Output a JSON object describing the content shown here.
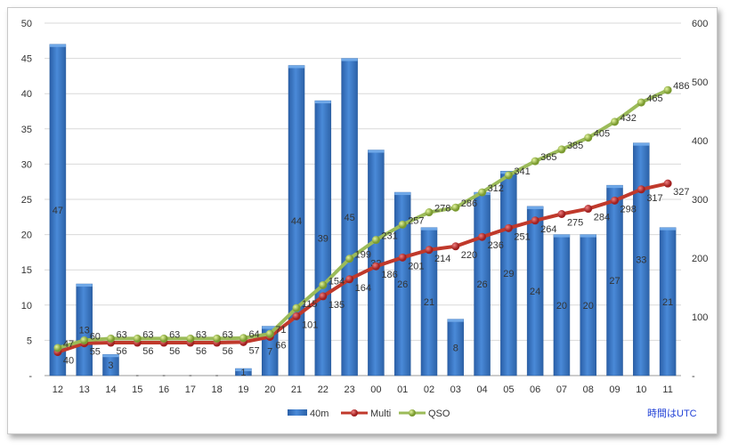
{
  "chart_data": {
    "type": "bar+line",
    "categories": [
      "12",
      "13",
      "14",
      "15",
      "16",
      "17",
      "18",
      "19",
      "20",
      "21",
      "22",
      "23",
      "00",
      "01",
      "02",
      "03",
      "04",
      "05",
      "06",
      "07",
      "08",
      "09",
      "10",
      "11"
    ],
    "series": [
      {
        "name": "40m",
        "type": "bar",
        "axis": "left",
        "color": "#3d7cc9",
        "values": [
          47,
          13,
          3,
          0,
          0,
          0,
          0,
          1,
          7,
          44,
          39,
          45,
          32,
          26,
          21,
          8,
          26,
          29,
          24,
          20,
          20,
          27,
          33,
          21
        ]
      },
      {
        "name": "Multi",
        "type": "line",
        "axis": "right",
        "color": "#c0392b",
        "values": [
          40,
          55,
          56,
          56,
          56,
          56,
          56,
          57,
          66,
          101,
          135,
          164,
          186,
          201,
          214,
          220,
          236,
          251,
          264,
          275,
          284,
          298,
          317,
          327
        ]
      },
      {
        "name": "QSO",
        "type": "line",
        "axis": "right",
        "color": "#9bbb59",
        "values": [
          47,
          60,
          63,
          63,
          63,
          63,
          63,
          64,
          71,
          115,
          154,
          199,
          231,
          257,
          278,
          286,
          312,
          341,
          365,
          385,
          405,
          432,
          465,
          486
        ]
      }
    ],
    "left_axis": {
      "ylim": [
        0,
        50
      ],
      "ticks": [
        "-",
        "5",
        "10",
        "15",
        "20",
        "25",
        "30",
        "35",
        "40",
        "45",
        "50"
      ]
    },
    "right_axis": {
      "ylim": [
        0,
        600
      ],
      "ticks": [
        "-",
        "100",
        "200",
        "300",
        "400",
        "500",
        "600"
      ]
    },
    "grid": true,
    "legend": "bottom",
    "annotation": "時間はUTC"
  }
}
